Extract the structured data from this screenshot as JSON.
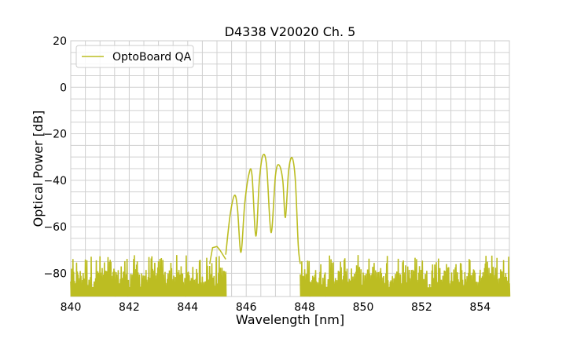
{
  "chart_data": {
    "type": "line",
    "title": "D4338 V20020 Ch. 5",
    "xlabel": "Wavelength [nm]",
    "ylabel": "Optical Power [dB]",
    "xlim": [
      840,
      855
    ],
    "ylim": [
      -90,
      20
    ],
    "xticks": [
      840,
      842,
      844,
      846,
      848,
      850,
      852,
      854
    ],
    "yticks": [
      20,
      0,
      -20,
      -40,
      -60,
      -80
    ],
    "ytick_labels": [
      "20",
      "0",
      "−20",
      "−40",
      "−60",
      "−80"
    ],
    "grid": true,
    "minor_grid": {
      "x_step": 0.5,
      "y_step": 5
    },
    "legend": {
      "placement": "top-left",
      "entries": [
        "OptoBoard QA"
      ]
    },
    "series": [
      {
        "name": "OptoBoard QA",
        "color": "#bcbd22",
        "signal": {
          "x": [
            845.3,
            845.45,
            845.6,
            845.7,
            845.82,
            845.95,
            846.1,
            846.2,
            846.33,
            846.45,
            846.57,
            846.7,
            846.85,
            847.0,
            847.12,
            847.25,
            847.34,
            847.45,
            847.57,
            847.68,
            847.78,
            847.85
          ],
          "y": [
            -72,
            -55,
            -46.5,
            -52,
            -71,
            -50,
            -37,
            -38,
            -64,
            -40,
            -29.3,
            -34,
            -62.5,
            -38,
            -33.4,
            -40,
            -56,
            -36,
            -30.3,
            -40,
            -68,
            -76
          ]
        },
        "pre_shoulder": {
          "x": [
            844.75,
            844.85,
            845.0,
            845.1,
            845.2,
            845.3
          ],
          "y": [
            -76,
            -69,
            -68.5,
            -70,
            -72,
            -74
          ]
        },
        "noise_floor": {
          "x_ranges": [
            [
              840,
              845.3
            ],
            [
              847.85,
              855
            ]
          ],
          "peak_range_db": [
            -88,
            -72
          ],
          "bottom_db": -90,
          "step_nm": 0.025
        }
      }
    ]
  }
}
